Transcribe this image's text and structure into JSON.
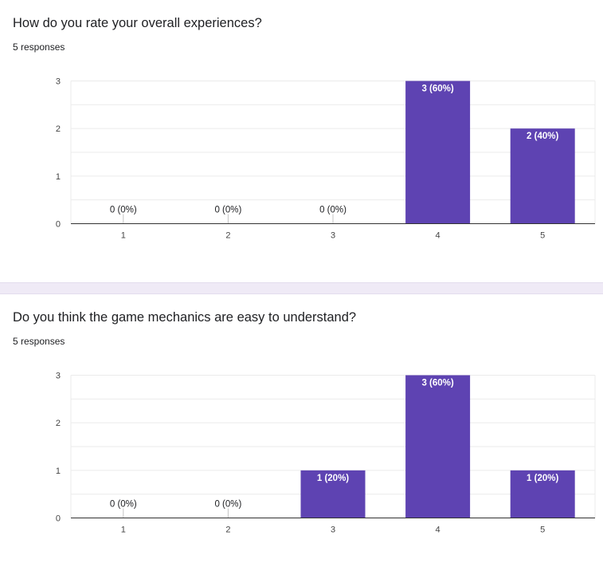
{
  "colors": {
    "bar": "#5e43b2",
    "grid": "#ebebeb",
    "axis": "#333333",
    "divider": "#efeaf6"
  },
  "questions": [
    {
      "title": "How do you rate your overall experiences?",
      "responses": "5 responses"
    },
    {
      "title": "Do you think the game mechanics are easy to understand?",
      "responses": "5 responses"
    }
  ],
  "chart_data": [
    {
      "type": "bar",
      "categories": [
        "1",
        "2",
        "3",
        "4",
        "5"
      ],
      "values": [
        0,
        0,
        0,
        3,
        2
      ],
      "data_labels": [
        "0 (0%)",
        "0 (0%)",
        "0 (0%)",
        "3 (60%)",
        "2 (40%)"
      ],
      "ylim": [
        0,
        3
      ],
      "yticks": [
        "0",
        "1",
        "2",
        "3"
      ],
      "grid": true
    },
    {
      "type": "bar",
      "categories": [
        "1",
        "2",
        "3",
        "4",
        "5"
      ],
      "values": [
        0,
        0,
        1,
        3,
        1
      ],
      "data_labels": [
        "0 (0%)",
        "0 (0%)",
        "1 (20%)",
        "3 (60%)",
        "1 (20%)"
      ],
      "ylim": [
        0,
        3
      ],
      "yticks": [
        "0",
        "1",
        "2",
        "3"
      ],
      "grid": true
    }
  ]
}
